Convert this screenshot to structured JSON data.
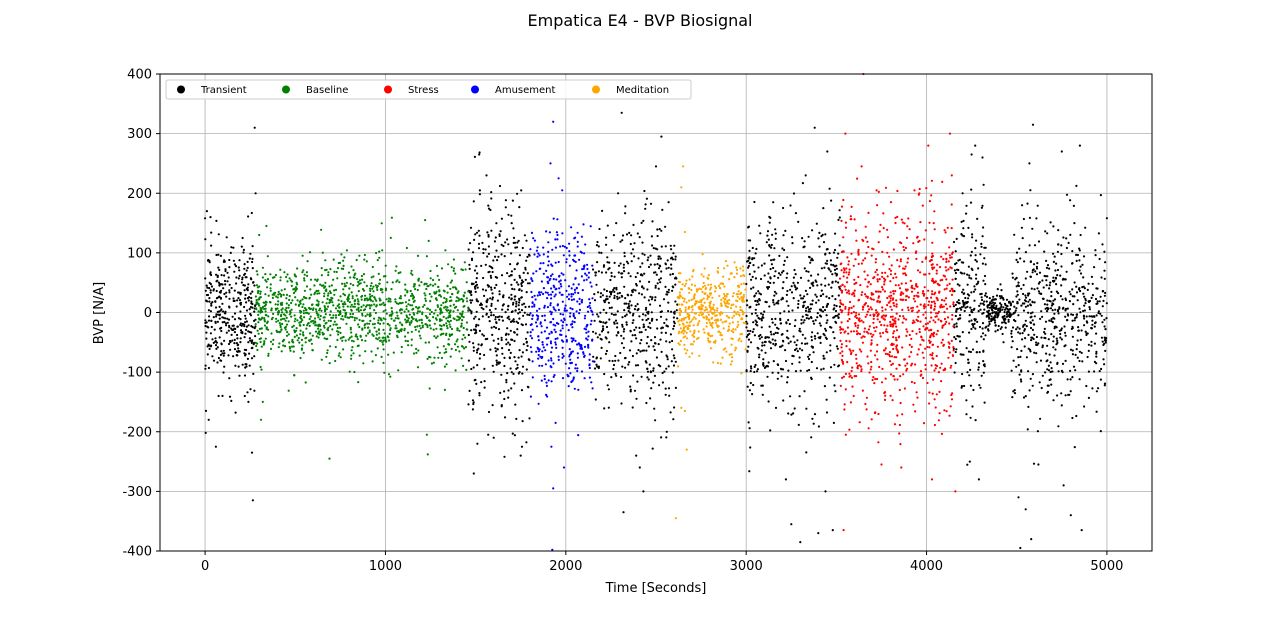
{
  "chart_data": {
    "type": "scatter",
    "title": "Empatica E4 - BVP Biosignal",
    "xlabel": "Time [Seconds]",
    "ylabel": "BVP [N/A]",
    "xlim": [
      -250,
      5250
    ],
    "ylim": [
      -400,
      400
    ],
    "x_ticks": [
      0,
      1000,
      2000,
      3000,
      4000,
      5000
    ],
    "y_ticks": [
      -400,
      -300,
      -200,
      -100,
      0,
      100,
      200,
      300,
      400
    ],
    "grid": true,
    "legend_position": "top-left",
    "series": [
      {
        "name": "Transient",
        "color": "#000000",
        "segments": [
          {
            "x_range": [
              0,
              280
            ],
            "spread": 58,
            "count": 380
          },
          {
            "x_range": [
              1460,
              1800
            ],
            "spread": 85,
            "count": 420
          },
          {
            "x_range": [
              2150,
              2620
            ],
            "spread": 80,
            "count": 480
          },
          {
            "x_range": [
              3000,
              3520
            ],
            "spread": 80,
            "count": 560
          },
          {
            "x_range": [
              4150,
              4330
            ],
            "spread": 85,
            "count": 220
          },
          {
            "x_range": [
              4330,
              4470
            ],
            "spread": 15,
            "count": 160
          },
          {
            "x_range": [
              4470,
              5000
            ],
            "spread": 75,
            "count": 560
          }
        ],
        "outliers": [
          [
            5,
            -165
          ],
          [
            10,
            170
          ],
          [
            20,
            -180
          ],
          [
            30,
            160
          ],
          [
            60,
            -225
          ],
          [
            75,
            -140
          ],
          [
            240,
            -150
          ],
          [
            260,
            -235
          ],
          [
            275,
            310
          ],
          [
            280,
            200
          ],
          [
            265,
            -315
          ],
          [
            1520,
            265
          ],
          [
            1560,
            230
          ],
          [
            1490,
            -270
          ],
          [
            1510,
            -220
          ],
          [
            1600,
            -210
          ],
          [
            1700,
            150
          ],
          [
            1750,
            -240
          ],
          [
            2310,
            335
          ],
          [
            2290,
            200
          ],
          [
            2320,
            -335
          ],
          [
            2390,
            -240
          ],
          [
            2410,
            -260
          ],
          [
            2430,
            -300
          ],
          [
            2500,
            245
          ],
          [
            2530,
            295
          ],
          [
            2560,
            -200
          ],
          [
            2570,
            185
          ],
          [
            3150,
            185
          ],
          [
            3220,
            -280
          ],
          [
            3250,
            -355
          ],
          [
            3300,
            -385
          ],
          [
            3330,
            230
          ],
          [
            3380,
            310
          ],
          [
            3400,
            -370
          ],
          [
            3440,
            -300
          ],
          [
            3450,
            270
          ],
          [
            3480,
            -365
          ],
          [
            4200,
            200
          ],
          [
            4240,
            -250
          ],
          [
            4250,
            265
          ],
          [
            4270,
            280
          ],
          [
            4290,
            -280
          ],
          [
            4310,
            260
          ],
          [
            4510,
            -310
          ],
          [
            4520,
            -395
          ],
          [
            4530,
            180
          ],
          [
            4550,
            -330
          ],
          [
            4570,
            250
          ],
          [
            4580,
            -380
          ],
          [
            4590,
            315
          ],
          [
            4620,
            -255
          ],
          [
            4750,
            270
          ],
          [
            4760,
            -290
          ],
          [
            4800,
            -340
          ],
          [
            4820,
            150
          ],
          [
            4850,
            280
          ],
          [
            4860,
            -365
          ]
        ]
      },
      {
        "name": "Baseline",
        "color": "#008000",
        "segments": [
          {
            "x_range": [
              280,
              1460
            ],
            "spread": 42,
            "count": 1250
          }
        ],
        "outliers": [
          [
            300,
            130
          ],
          [
            320,
            -150
          ],
          [
            340,
            145
          ],
          [
            310,
            -180
          ],
          [
            690,
            -245
          ],
          [
            1220,
            155
          ],
          [
            1240,
            120
          ],
          [
            1230,
            -205
          ],
          [
            1235,
            -238
          ]
        ]
      },
      {
        "name": "Stress",
        "color": "#ff0000",
        "segments": [
          {
            "x_range": [
              3520,
              4150
            ],
            "spread": 80,
            "count": 850
          }
        ],
        "outliers": [
          [
            3540,
            -365
          ],
          [
            3550,
            300
          ],
          [
            3650,
            400
          ],
          [
            3640,
            245
          ],
          [
            3750,
            -255
          ],
          [
            3860,
            -260
          ],
          [
            3960,
            200
          ],
          [
            4010,
            280
          ],
          [
            4030,
            -280
          ],
          [
            4130,
            300
          ],
          [
            4140,
            230
          ],
          [
            4160,
            -300
          ]
        ]
      },
      {
        "name": "Amusement",
        "color": "#0000ff",
        "segments": [
          {
            "x_range": [
              1800,
              2150
            ],
            "spread": 70,
            "count": 420
          }
        ],
        "outliers": [
          [
            1930,
            320
          ],
          [
            1915,
            250
          ],
          [
            1920,
            -225
          ],
          [
            1930,
            -295
          ],
          [
            1925,
            -398
          ],
          [
            1990,
            -260
          ],
          [
            1960,
            225
          ],
          [
            1980,
            205
          ]
        ]
      },
      {
        "name": "Meditation",
        "color": "#ffa500",
        "segments": [
          {
            "x_range": [
              2620,
              3000
            ],
            "spread": 35,
            "count": 430
          }
        ],
        "outliers": [
          [
            2610,
            -345
          ],
          [
            2650,
            245
          ],
          [
            2640,
            210
          ],
          [
            2660,
            135
          ],
          [
            2670,
            -230
          ],
          [
            2660,
            -165
          ],
          [
            2640,
            -160
          ]
        ]
      }
    ]
  }
}
